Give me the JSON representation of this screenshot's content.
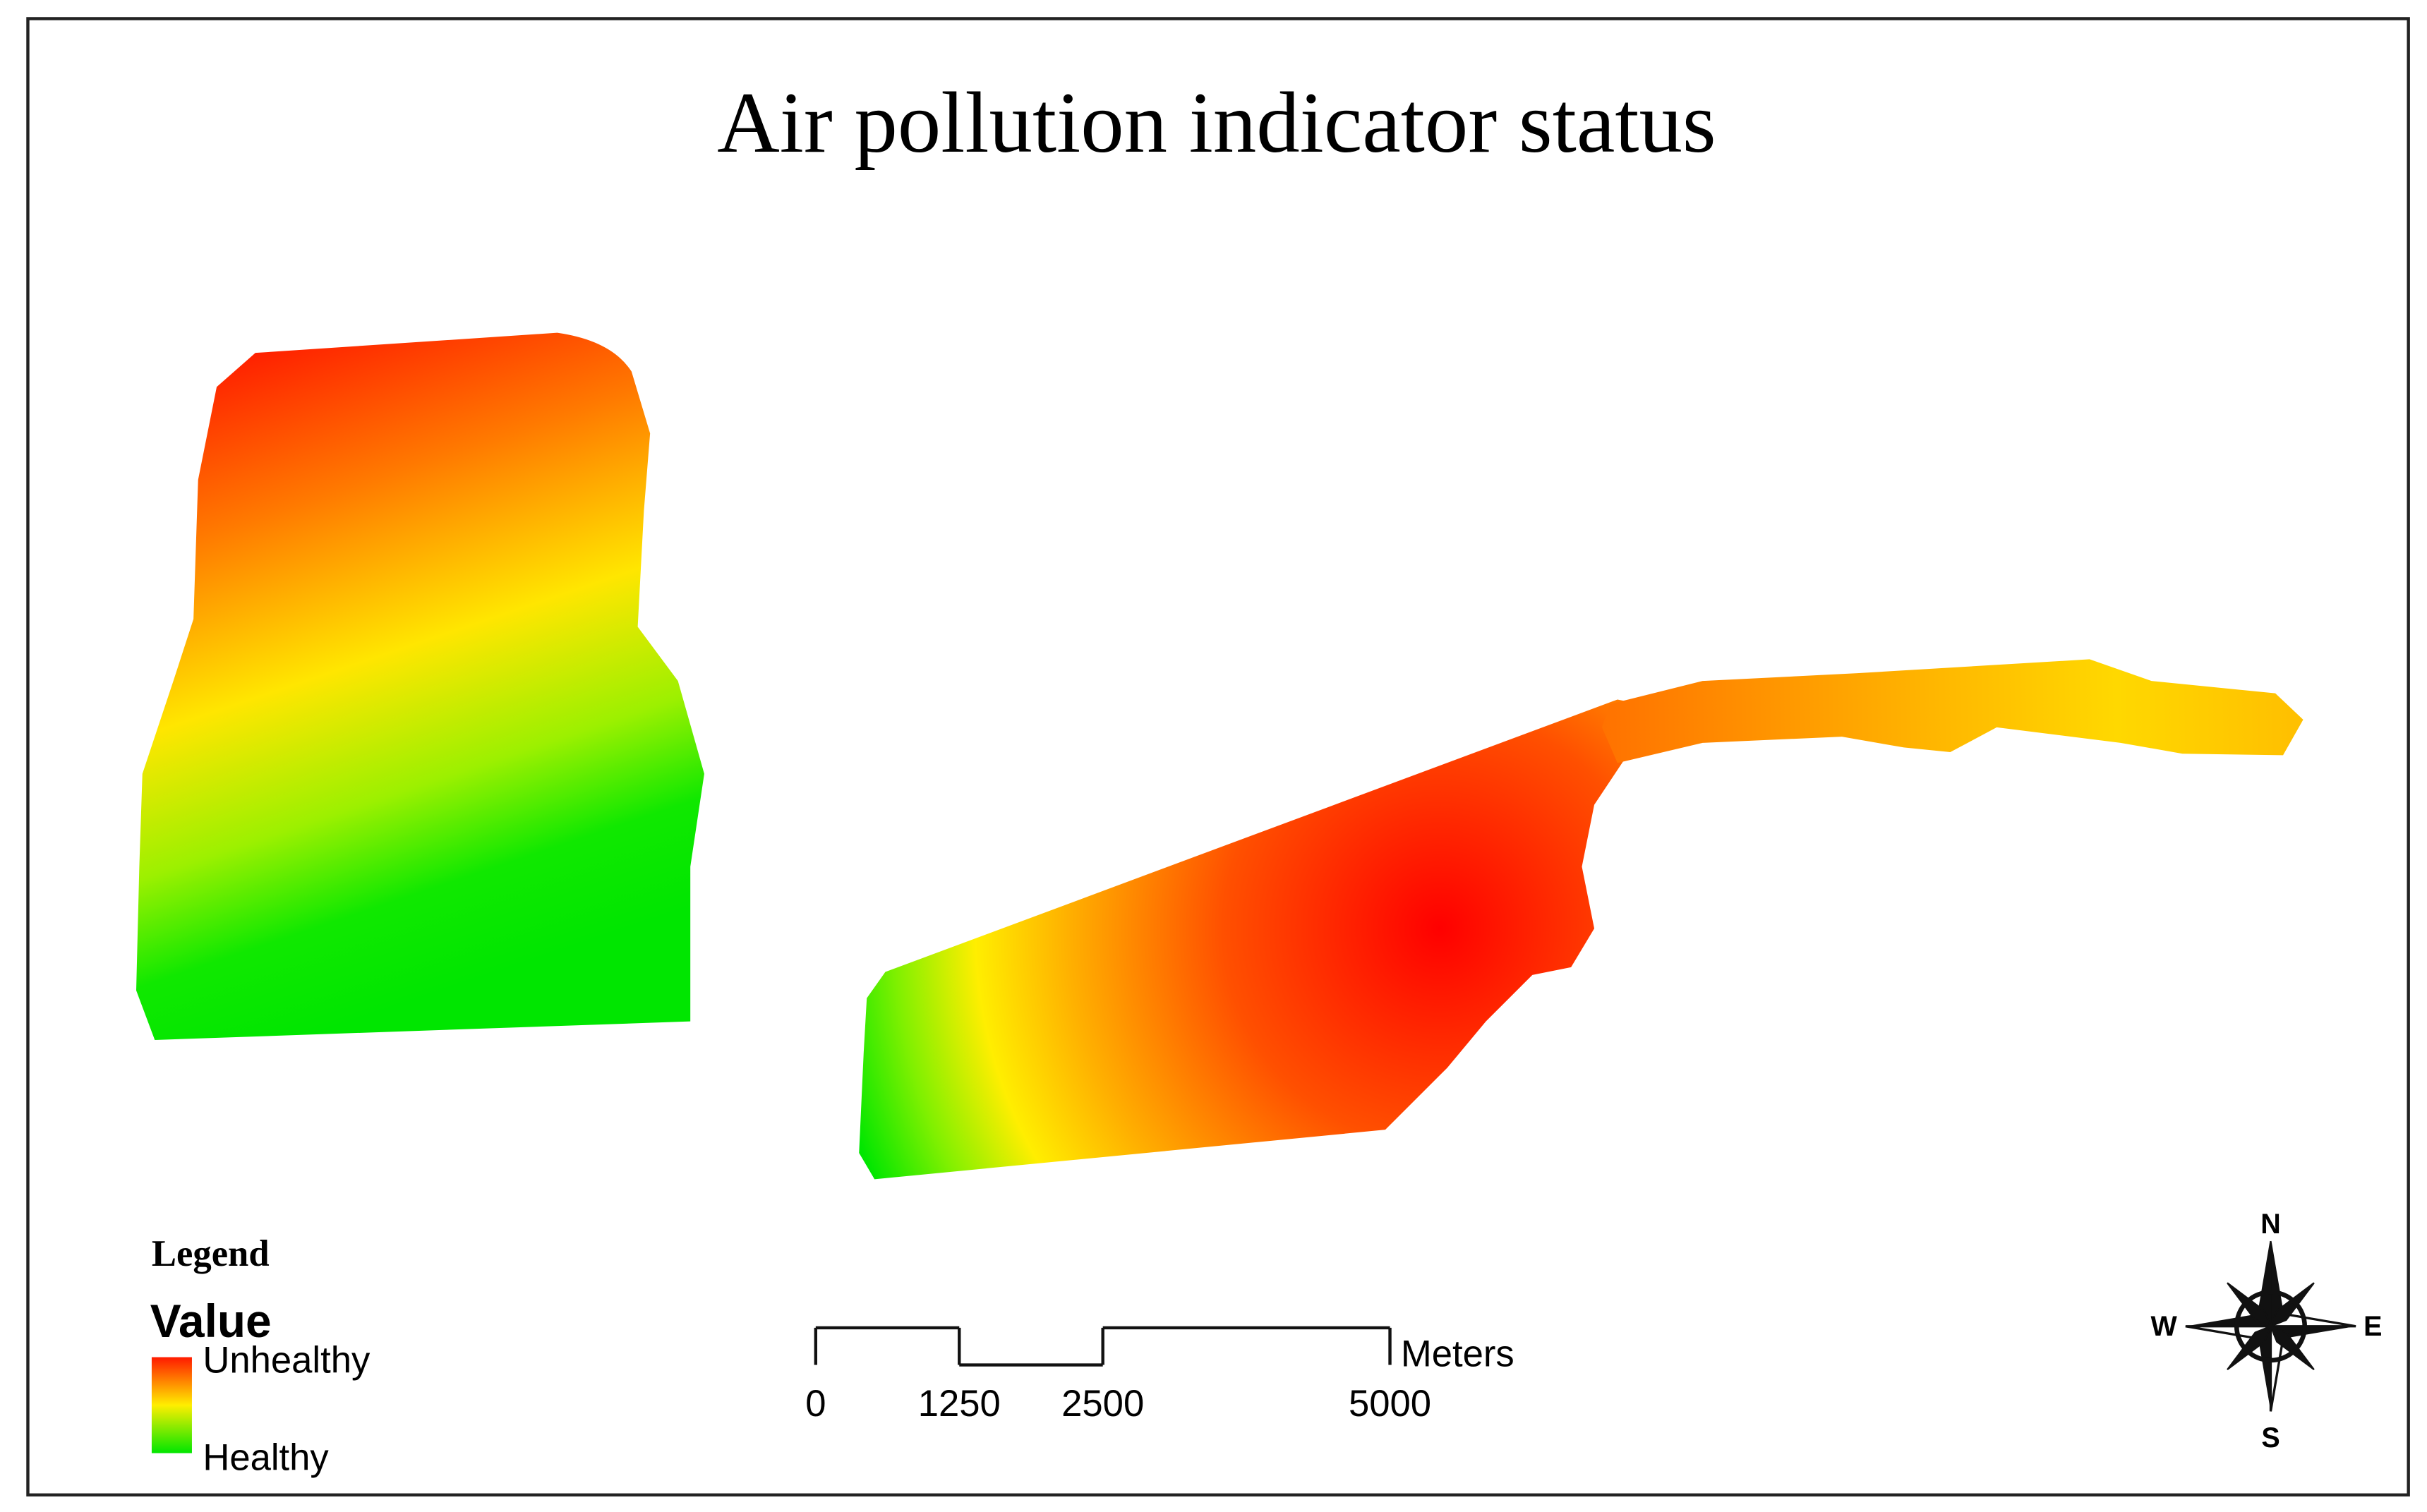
{
  "title": "Air pollution indicator status",
  "legend": {
    "title": "Legend",
    "field": "Value",
    "high_label": "Unhealthy",
    "low_label": "Healthy"
  },
  "scale_bar": {
    "ticks": [
      0,
      1250,
      2500,
      5000
    ],
    "unit": "Meters"
  },
  "compass": {
    "north": "N",
    "east": "E",
    "south": "S",
    "west": "W"
  }
}
